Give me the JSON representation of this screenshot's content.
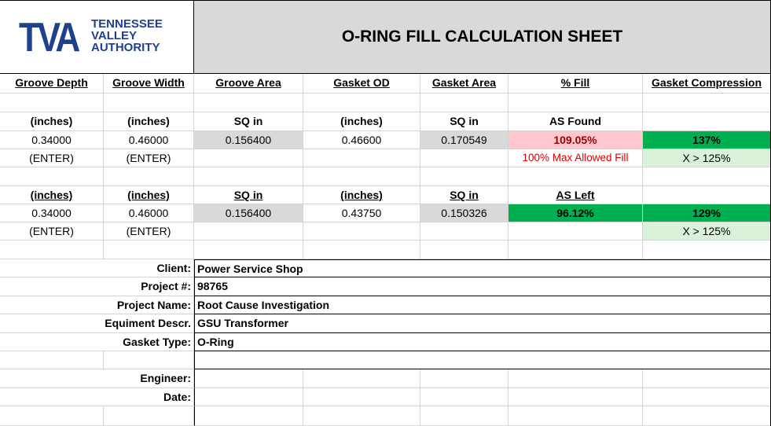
{
  "logo": {
    "mark": "TVA",
    "line1": "TENNESSEE",
    "line2": "VALLEY",
    "line3": "AUTHORITY"
  },
  "title": "O-RING FILL CALCULATION SHEET",
  "columns": {
    "groove_depth": "Groove Depth",
    "groove_width": "Groove Width",
    "groove_area": "Groove Area",
    "gasket_od": "Gasket OD",
    "gasket_area": "Gasket Area",
    "pct_fill": "% Fill",
    "gasket_compression": "Gasket Compression"
  },
  "found": {
    "units": {
      "depth": "(inches)",
      "width": "(inches)",
      "groove_area": "SQ in",
      "od": "(inches)",
      "gasket_area": "SQ in",
      "fill": "AS Found"
    },
    "values": {
      "depth": "0.34000",
      "width": "0.46000",
      "groove_area": "0.156400",
      "od": "0.46600",
      "gasket_area": "0.170549",
      "fill": "109.05%",
      "compression": "137%"
    },
    "notes": {
      "depth": "(ENTER)",
      "width": "(ENTER)",
      "fill": "100% Max Allowed Fill",
      "compression": "X > 125%"
    }
  },
  "left": {
    "units": {
      "depth": "(inches)",
      "width": "(inches)",
      "groove_area": "SQ in",
      "od": "(inches)",
      "gasket_area": "SQ in",
      "fill": "AS Left"
    },
    "values": {
      "depth": "0.34000",
      "width": "0.46000",
      "groove_area": "0.156400",
      "od": "0.43750",
      "gasket_area": "0.150326",
      "fill": "96.12%",
      "compression": "129%"
    },
    "notes": {
      "depth": "(ENTER)",
      "width": "(ENTER)",
      "compression": "X > 125%"
    }
  },
  "info": {
    "client_label": "Client:",
    "client": "Power Service Shop",
    "project_no_label": "Project #:",
    "project_no": "98765",
    "project_name_label": "Project Name:",
    "project_name": "Root Cause Investigation",
    "equipment_label": "Equiment Descr.",
    "equipment": "GSU Transformer",
    "gasket_type_label": "Gasket Type:",
    "gasket_type": "O-Ring",
    "engineer_label": "Engineer:",
    "date_label": "Date:"
  }
}
